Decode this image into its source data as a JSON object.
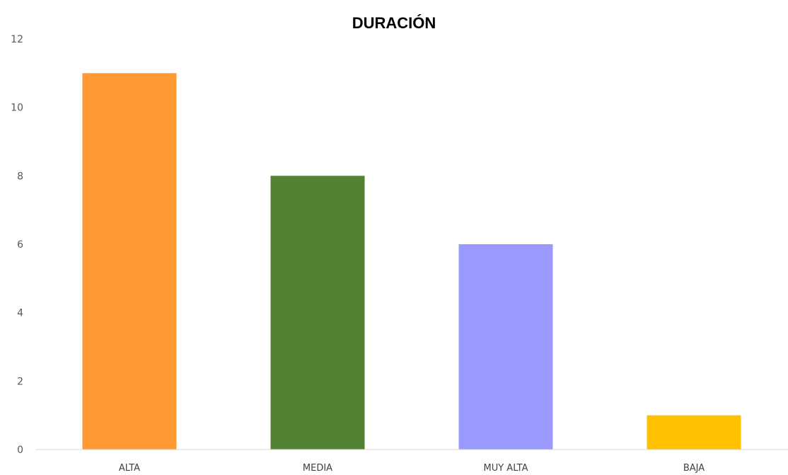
{
  "chart_data": {
    "type": "bar",
    "title": "DURACIÓN",
    "categories": [
      "ALTA",
      "MEDIA",
      "MUY ALTA",
      "BAJA"
    ],
    "values": [
      11,
      8,
      6,
      1
    ],
    "colors": [
      "#FF9933",
      "#548235",
      "#9999FF",
      "#FFC000"
    ],
    "xlabel": "",
    "ylabel": "",
    "ylim": [
      0,
      12
    ],
    "yticks": [
      0,
      2,
      4,
      6,
      8,
      10,
      12
    ],
    "grid": false,
    "legend": "none"
  }
}
